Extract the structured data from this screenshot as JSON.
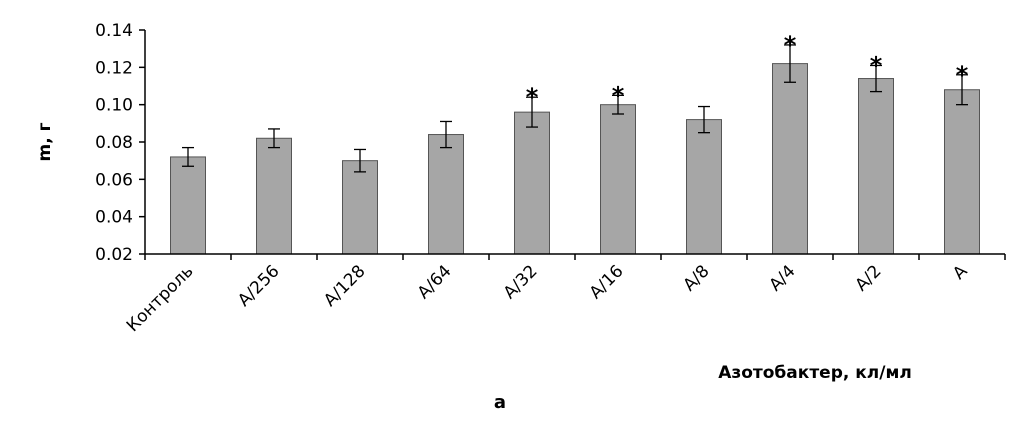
{
  "chart_data": {
    "type": "bar",
    "ylabel": "m, г",
    "xlabel": "Азотобактер, кл/мл",
    "caption": "а",
    "categories": [
      "Контроль",
      "A/256",
      "A/128",
      "A/64",
      "A/32",
      "A/16",
      "A/8",
      "A/4",
      "A/2",
      "A"
    ],
    "values": [
      0.072,
      0.082,
      0.07,
      0.084,
      0.096,
      0.1,
      0.092,
      0.122,
      0.114,
      0.108
    ],
    "errors": [
      0.005,
      0.005,
      0.006,
      0.007,
      0.008,
      0.005,
      0.007,
      0.01,
      0.007,
      0.008
    ],
    "significance": [
      "",
      "",
      "",
      "",
      "*",
      "*",
      "",
      "*",
      "*",
      "*"
    ],
    "ylim": [
      0.02,
      0.14
    ],
    "yticks": [
      "0.02",
      "0.04",
      "0.06",
      "0.08",
      "0.10",
      "0.12",
      "0.14"
    ],
    "grid": false,
    "colors": {
      "bar_fill": "#a6a6a6",
      "bar_stroke": "#555555",
      "axis": "#000000"
    }
  }
}
